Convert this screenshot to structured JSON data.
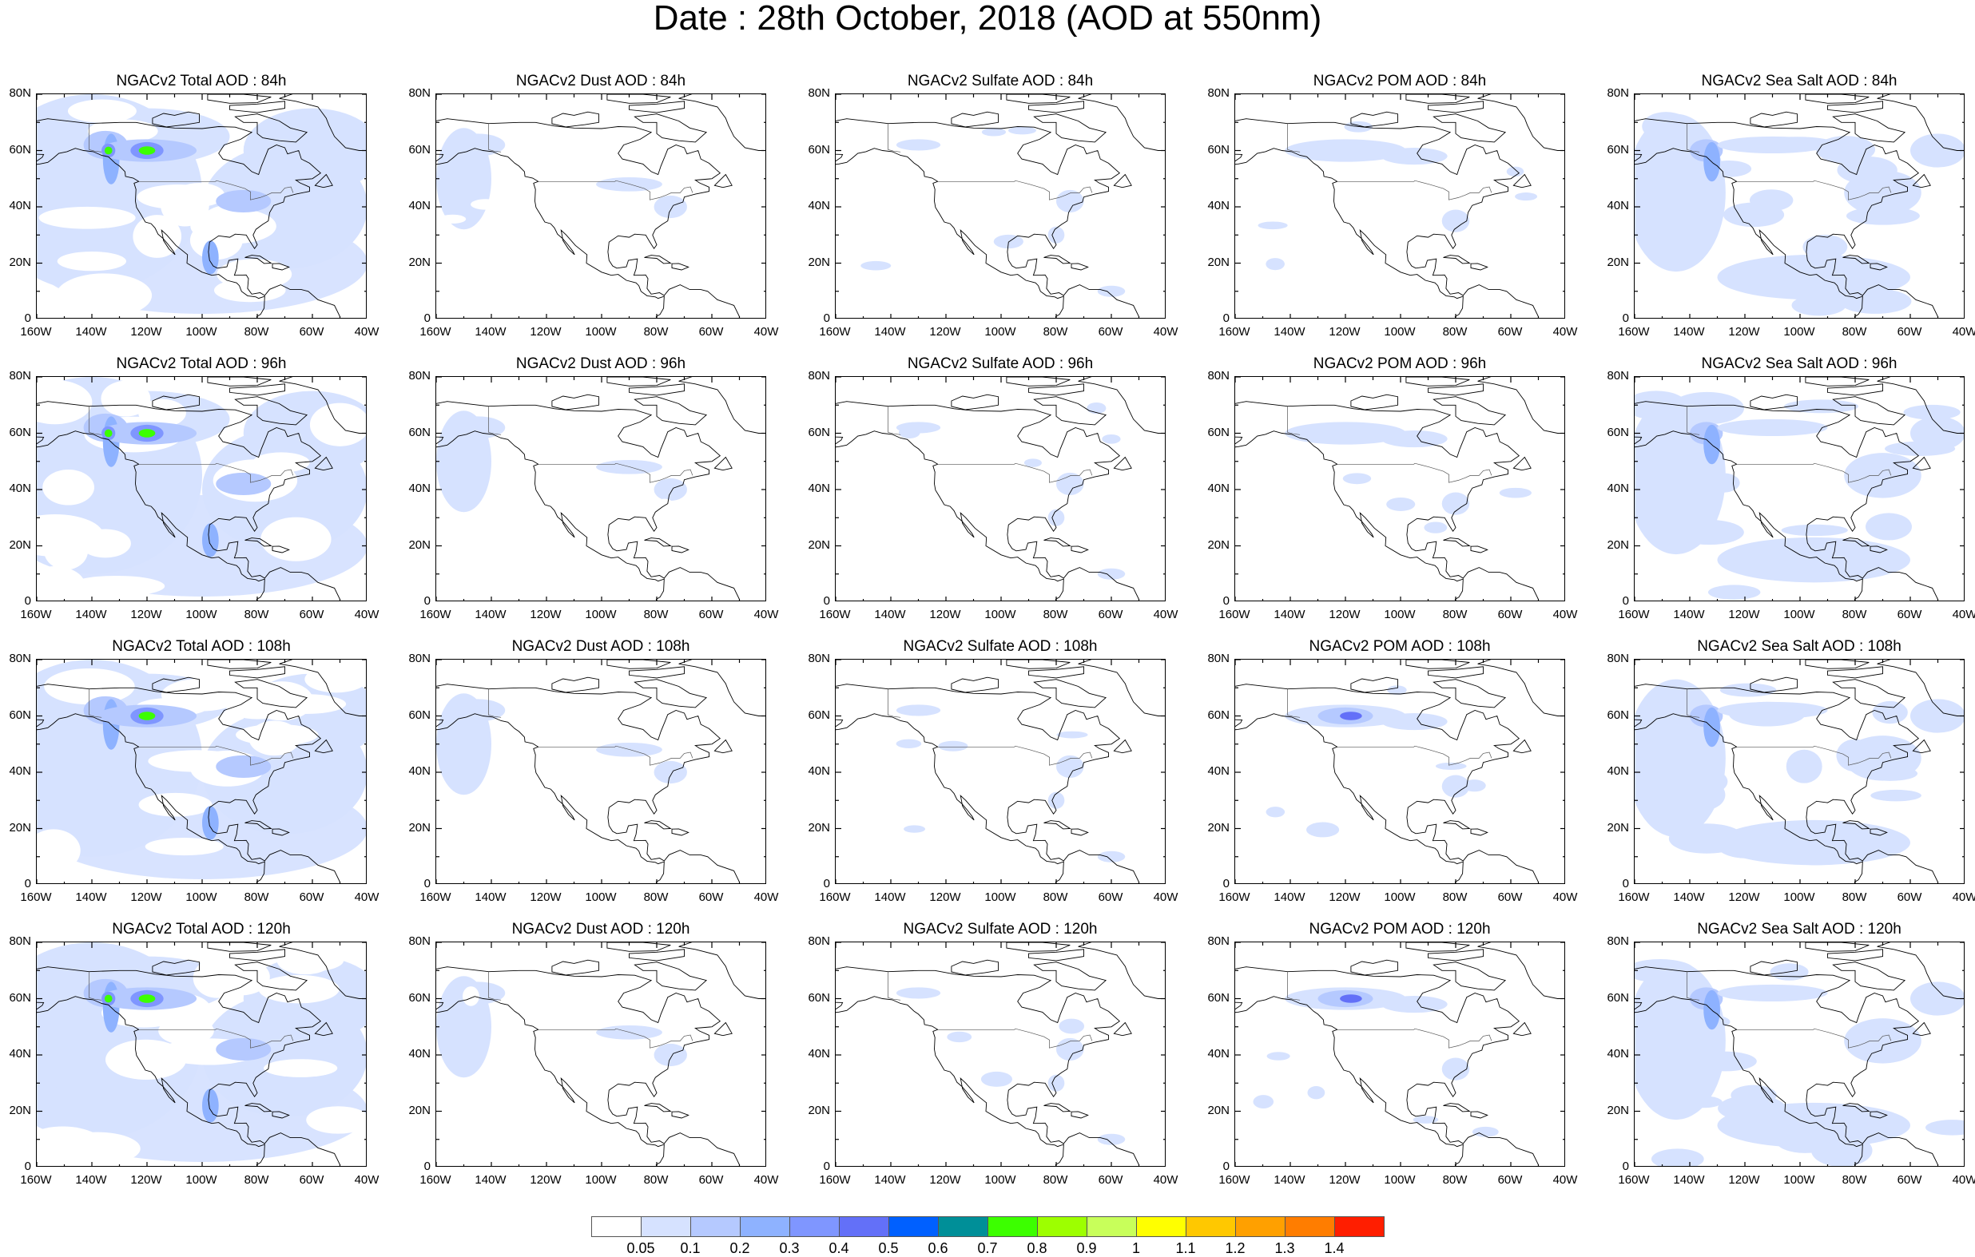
{
  "title": "Date : 28th October, 2018 (AOD at 550nm)",
  "hours": [
    "84h",
    "96h",
    "108h",
    "120h"
  ],
  "species": [
    {
      "key": "total",
      "prefix": "NGACv2 Total AOD"
    },
    {
      "key": "dust",
      "prefix": "NGACv2 Dust AOD"
    },
    {
      "key": "sulfate",
      "prefix": "NGACv2 Sulfate AOD"
    },
    {
      "key": "pom",
      "prefix": "NGACv2 POM AOD"
    },
    {
      "key": "seasalt",
      "prefix": "NGACv2 Sea Salt AOD"
    }
  ],
  "panel_titles": [
    [
      "NGACv2 Total AOD : 84h",
      "NGACv2 Dust AOD : 84h",
      "NGACv2 Sulfate AOD : 84h",
      "NGACv2 POM AOD : 84h",
      "NGACv2 Sea Salt AOD : 84h"
    ],
    [
      "NGACv2 Total AOD : 96h",
      "NGACv2 Dust AOD : 96h",
      "NGACv2 Sulfate AOD : 96h",
      "NGACv2 POM AOD : 96h",
      "NGACv2 Sea Salt AOD : 96h"
    ],
    [
      "NGACv2 Total AOD : 108h",
      "NGACv2 Dust AOD : 108h",
      "NGACv2 Sulfate AOD : 108h",
      "NGACv2 POM AOD : 108h",
      "NGACv2 Sea Salt AOD : 108h"
    ],
    [
      "NGACv2 Total AOD : 120h",
      "NGACv2 Dust AOD : 120h",
      "NGACv2 Sulfate AOD : 120h",
      "NGACv2 POM AOD : 120h",
      "NGACv2 Sea Salt  AOD : 120h"
    ]
  ],
  "axes": {
    "lat_labels": [
      "80N",
      "60N",
      "40N",
      "20N",
      "0"
    ],
    "lon_labels": [
      "160W",
      "140W",
      "120W",
      "100W",
      "80W",
      "60W",
      "40W"
    ],
    "lat_range": [
      0,
      80
    ],
    "lon_range": [
      -160,
      -40
    ]
  },
  "colorbar": {
    "levels": [
      "0.05",
      "0.1",
      "0.2",
      "0.3",
      "0.4",
      "0.5",
      "0.6",
      "0.7",
      "0.8",
      "0.9",
      "1",
      "1.1",
      "1.2",
      "1.3",
      "1.4"
    ],
    "colors": [
      "#ffffff",
      "#d6e2ff",
      "#b5c9ff",
      "#8eb2ff",
      "#7f96ff",
      "#6370f8",
      "#0060ff",
      "#008f98",
      "#3cff00",
      "#9dff00",
      "#c8ff5a",
      "#ffff00",
      "#ffc800",
      "#ffa000",
      "#ff7d00",
      "#ff1e00"
    ]
  },
  "plumes": {
    "total": {
      "84h": "high",
      "96h": "high",
      "108h": "medium",
      "120h": "high"
    },
    "dust": {
      "84h": "low",
      "96h": "low",
      "108h": "low",
      "120h": "low"
    },
    "sulfate": {
      "84h": "low",
      "96h": "low",
      "108h": "low",
      "120h": "low"
    },
    "pom": {
      "84h": "low",
      "96h": "low",
      "108h": "medium",
      "120h": "medium"
    },
    "seasalt": {
      "84h": "medium",
      "96h": "medium",
      "108h": "medium",
      "120h": "medium"
    }
  }
}
